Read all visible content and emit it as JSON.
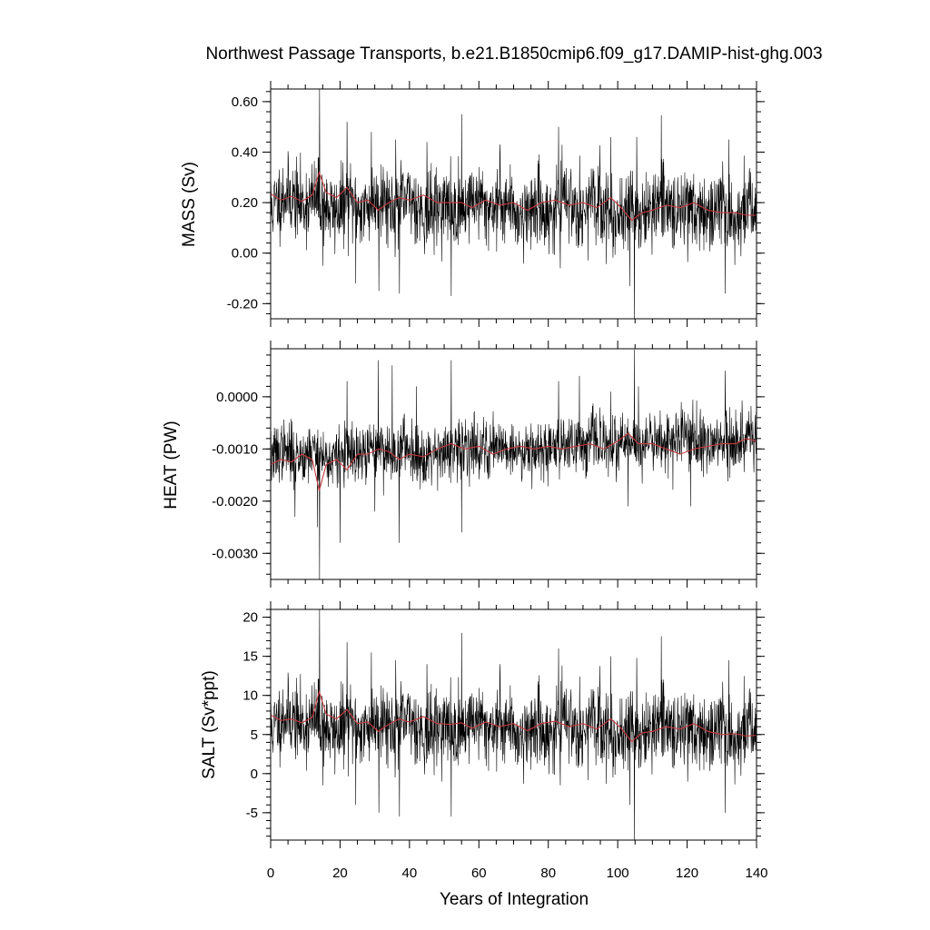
{
  "chart_data": [
    {
      "type": "line",
      "title": "Northwest Passage Transports, b.e21.B1850cmip6.f09_g17.DAMIP-hist-ghg.003",
      "ylabel": "MASS (Sv)",
      "xlabel": "",
      "xlim": [
        0,
        140
      ],
      "ylim": [
        -0.26,
        0.65
      ],
      "yticks": [
        -0.2,
        0.0,
        0.2,
        0.4,
        0.6
      ],
      "ytick_labels": [
        "-0.20",
        "0.00",
        "0.20",
        "0.40",
        "0.60"
      ],
      "minor_ystep": 0.04,
      "series": [
        {
          "role": "monthly",
          "color": "#000000",
          "mean": 0.2,
          "spread": 0.075,
          "trend_end": -0.035,
          "seed": 11,
          "spikes": [
            [
              14.1,
              0.65
            ],
            [
              15.0,
              -0.05
            ],
            [
              22.0,
              0.52
            ],
            [
              24.5,
              -0.12
            ],
            [
              29.0,
              0.48
            ],
            [
              31.2,
              -0.15
            ],
            [
              36.0,
              0.45
            ],
            [
              37.1,
              -0.16
            ],
            [
              45.0,
              0.44
            ],
            [
              52.0,
              -0.17
            ],
            [
              55.0,
              0.55
            ],
            [
              83.0,
              0.5
            ],
            [
              83.5,
              -0.06
            ],
            [
              103.5,
              -0.13
            ],
            [
              104.8,
              -0.27
            ],
            [
              105.5,
              0.46
            ],
            [
              131.0,
              -0.16
            ],
            [
              132.0,
              0.45
            ],
            [
              66.0,
              0.43
            ],
            [
              98.0,
              0.46
            ]
          ]
        },
        {
          "role": "running-mean",
          "color": "#c8393e",
          "mean": 0.2,
          "spread": 0.022,
          "trend_end": -0.035,
          "seed": 21,
          "points": [
            [
              0,
              0.235
            ],
            [
              3,
              0.21
            ],
            [
              6,
              0.225
            ],
            [
              9,
              0.205
            ],
            [
              12,
              0.23
            ],
            [
              14,
              0.32
            ],
            [
              16,
              0.24
            ],
            [
              19,
              0.22
            ],
            [
              22,
              0.26
            ],
            [
              25,
              0.2
            ],
            [
              28,
              0.21
            ],
            [
              31,
              0.17
            ],
            [
              34,
              0.2
            ],
            [
              37,
              0.22
            ],
            [
              40,
              0.21
            ],
            [
              44,
              0.23
            ],
            [
              48,
              0.2
            ],
            [
              52,
              0.2
            ],
            [
              55,
              0.2
            ],
            [
              58,
              0.18
            ],
            [
              62,
              0.21
            ],
            [
              66,
              0.19
            ],
            [
              70,
              0.2
            ],
            [
              74,
              0.17
            ],
            [
              78,
              0.2
            ],
            [
              82,
              0.21
            ],
            [
              86,
              0.19
            ],
            [
              90,
              0.2
            ],
            [
              94,
              0.18
            ],
            [
              98,
              0.22
            ],
            [
              101,
              0.18
            ],
            [
              104,
              0.13
            ],
            [
              107,
              0.16
            ],
            [
              110,
              0.17
            ],
            [
              114,
              0.19
            ],
            [
              118,
              0.18
            ],
            [
              122,
              0.2
            ],
            [
              126,
              0.17
            ],
            [
              130,
              0.16
            ],
            [
              134,
              0.16
            ],
            [
              137,
              0.15
            ],
            [
              140,
              0.15
            ]
          ]
        }
      ]
    },
    {
      "type": "line",
      "title": "",
      "ylabel": "HEAT (PW)",
      "xlabel": "",
      "xlim": [
        0,
        140
      ],
      "ylim": [
        -0.0035,
        0.00092
      ],
      "yticks": [
        -0.003,
        -0.002,
        -0.001,
        0.0
      ],
      "ytick_labels": [
        "-0.0030",
        "-0.0020",
        "-0.0010",
        "0.0000"
      ],
      "minor_ystep": 0.0002,
      "series": [
        {
          "role": "monthly",
          "color": "#000000",
          "mean": -0.00115,
          "spread": 0.00028,
          "trend_end": 0.00035,
          "seed": 37,
          "spikes": [
            [
              14.1,
              -0.0035
            ],
            [
              13.5,
              -0.0025
            ],
            [
              20.0,
              -0.0028
            ],
            [
              22.0,
              0.0003
            ],
            [
              31.0,
              0.0007
            ],
            [
              37.0,
              -0.0028
            ],
            [
              35.0,
              0.0006
            ],
            [
              52.0,
              0.0007
            ],
            [
              55.0,
              -0.0026
            ],
            [
              42.0,
              0.0002
            ],
            [
              83.0,
              0.0003
            ],
            [
              98.0,
              0.0001
            ],
            [
              103.0,
              -0.0021
            ],
            [
              104.8,
              0.0009
            ],
            [
              106.0,
              0.0002
            ],
            [
              131.0,
              0.0005
            ],
            [
              121.0,
              -0.0021
            ],
            [
              7.0,
              -0.0023
            ],
            [
              30.0,
              -0.0022
            ],
            [
              89.0,
              0.0004
            ]
          ]
        },
        {
          "role": "running-mean",
          "color": "#c8393e",
          "mean": -0.00115,
          "spread": 0.0001,
          "trend_end": 0.00035,
          "seed": 43,
          "points": [
            [
              0,
              -0.0013
            ],
            [
              3,
              -0.0012
            ],
            [
              6,
              -0.00125
            ],
            [
              9,
              -0.0011
            ],
            [
              12,
              -0.0012
            ],
            [
              14,
              -0.0018
            ],
            [
              16,
              -0.0013
            ],
            [
              19,
              -0.0012
            ],
            [
              22,
              -0.0014
            ],
            [
              25,
              -0.0011
            ],
            [
              28,
              -0.0011
            ],
            [
              31,
              -0.001
            ],
            [
              34,
              -0.00105
            ],
            [
              37,
              -0.0012
            ],
            [
              40,
              -0.0011
            ],
            [
              44,
              -0.00115
            ],
            [
              48,
              -0.001
            ],
            [
              52,
              -0.0009
            ],
            [
              56,
              -0.001
            ],
            [
              60,
              -0.00095
            ],
            [
              64,
              -0.0011
            ],
            [
              68,
              -0.001
            ],
            [
              72,
              -0.00095
            ],
            [
              76,
              -0.001
            ],
            [
              80,
              -0.00095
            ],
            [
              84,
              -0.001
            ],
            [
              88,
              -0.00095
            ],
            [
              92,
              -0.0009
            ],
            [
              96,
              -0.001
            ],
            [
              100,
              -0.00085
            ],
            [
              103,
              -0.0007
            ],
            [
              106,
              -0.0009
            ],
            [
              110,
              -0.0009
            ],
            [
              114,
              -0.001
            ],
            [
              118,
              -0.0011
            ],
            [
              122,
              -0.001
            ],
            [
              126,
              -0.00095
            ],
            [
              130,
              -0.0009
            ],
            [
              134,
              -0.0009
            ],
            [
              137,
              -0.0008
            ],
            [
              140,
              -0.00085
            ]
          ]
        }
      ]
    },
    {
      "type": "line",
      "title": "",
      "ylabel": "SALT (Sv*ppt)",
      "xlabel": "Years of Integration",
      "xlim": [
        0,
        140
      ],
      "ylim": [
        -8.5,
        21
      ],
      "yticks": [
        -5,
        0,
        5,
        10,
        15,
        20
      ],
      "ytick_labels": [
        "-5",
        "0",
        "5",
        "10",
        "15",
        "20"
      ],
      "minor_ystep": 1,
      "xticks": [
        0,
        20,
        40,
        60,
        80,
        100,
        120,
        140
      ],
      "xtick_labels": [
        "0",
        "20",
        "40",
        "60",
        "80",
        "100",
        "120",
        "140"
      ],
      "series": [
        {
          "role": "monthly",
          "color": "#000000",
          "mean": 6.4,
          "spread": 2.4,
          "trend_end": -1.0,
          "seed": 11,
          "spikes": [
            [
              14.1,
              21
            ],
            [
              15.0,
              -1.5
            ],
            [
              22.0,
              16.8
            ],
            [
              24.5,
              -4.0
            ],
            [
              29.0,
              15.5
            ],
            [
              31.2,
              -5.0
            ],
            [
              36.0,
              14.5
            ],
            [
              37.1,
              -5.5
            ],
            [
              45.0,
              14.0
            ],
            [
              52.0,
              -5.5
            ],
            [
              55.0,
              18.0
            ],
            [
              83.0,
              16.0
            ],
            [
              83.5,
              -1.5
            ],
            [
              103.5,
              -4.0
            ],
            [
              104.8,
              -8.5
            ],
            [
              105.5,
              14.8
            ],
            [
              131.0,
              -5.0
            ],
            [
              132.0,
              14.5
            ],
            [
              66.0,
              14.0
            ],
            [
              98.0,
              15.0
            ]
          ]
        },
        {
          "role": "running-mean",
          "color": "#c8393e",
          "mean": 6.4,
          "spread": 0.7,
          "trend_end": -1.0,
          "seed": 21,
          "points": [
            [
              0,
              7.5
            ],
            [
              3,
              6.8
            ],
            [
              6,
              7.0
            ],
            [
              9,
              6.5
            ],
            [
              12,
              7.2
            ],
            [
              14,
              10.5
            ],
            [
              16,
              7.6
            ],
            [
              19,
              7.0
            ],
            [
              22,
              8.2
            ],
            [
              25,
              6.4
            ],
            [
              28,
              6.6
            ],
            [
              31,
              5.4
            ],
            [
              34,
              6.3
            ],
            [
              37,
              7.0
            ],
            [
              40,
              6.6
            ],
            [
              44,
              7.3
            ],
            [
              48,
              6.4
            ],
            [
              52,
              6.3
            ],
            [
              55,
              6.5
            ],
            [
              58,
              5.8
            ],
            [
              62,
              6.6
            ],
            [
              66,
              6.0
            ],
            [
              70,
              6.4
            ],
            [
              74,
              5.5
            ],
            [
              78,
              6.4
            ],
            [
              82,
              6.7
            ],
            [
              86,
              6.0
            ],
            [
              90,
              6.4
            ],
            [
              94,
              5.7
            ],
            [
              98,
              7.0
            ],
            [
              101,
              5.8
            ],
            [
              104,
              4.1
            ],
            [
              107,
              5.2
            ],
            [
              110,
              5.4
            ],
            [
              114,
              6.0
            ],
            [
              118,
              5.7
            ],
            [
              122,
              6.4
            ],
            [
              126,
              5.4
            ],
            [
              130,
              5.0
            ],
            [
              134,
              5.1
            ],
            [
              137,
              4.8
            ],
            [
              140,
              4.9
            ]
          ]
        }
      ]
    }
  ]
}
